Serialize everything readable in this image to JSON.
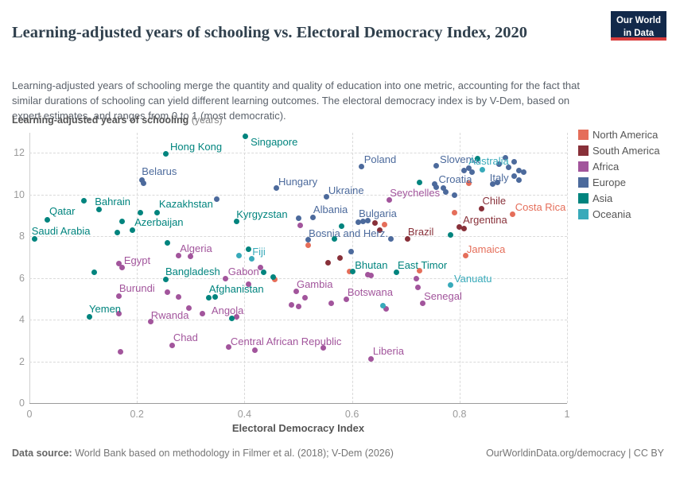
{
  "header": {
    "title": "Learning-adjusted years of schooling vs. Electoral Democracy Index, 2020",
    "subtitle": "Learning-adjusted years of schooling merge the quantity and quality of education into one metric, accounting for the fact that similar durations of schooling can yield different learning outcomes. The electoral democracy index is by V-Dem, based on expert estimates, and ranges from 0 to 1 (most democratic).",
    "logo_line1": "Our World",
    "logo_line2": "in Data",
    "logo_bg": "#12294a",
    "logo_stripe": "#d93c3c"
  },
  "footer": {
    "source_label": "Data source:",
    "source_text": " World Bank based on methodology in Filmer et al. (2018); V-Dem (2026)",
    "link_text": "OurWorldinData.org/democracy | CC BY"
  },
  "chart_data": {
    "type": "scatter",
    "title": "Learning-adjusted years of schooling vs. Electoral Democracy Index, 2020",
    "xlabel": "Electoral Democracy Index",
    "ylabel_bold": "Learning-adjusted years of schooling",
    "ylabel_unit": " (years)",
    "xlim": [
      0,
      1
    ],
    "ylim": [
      0,
      12.95
    ],
    "x_ticks": [
      0,
      0.2,
      0.4,
      0.6,
      0.8,
      1
    ],
    "x_tick_labels": [
      "0",
      "0.2",
      "0.4",
      "0.6",
      "0.8",
      "1"
    ],
    "y_ticks": [
      0,
      2,
      4,
      6,
      8,
      10,
      12
    ],
    "grid": "dashed",
    "legend_position": "right",
    "series": [
      {
        "name": "North America",
        "color": "#e56e5a",
        "points": [
          {
            "n": "Costa Rica",
            "x": 0.899,
            "y": 9.03,
            "lx": 3,
            "ly": -16
          },
          {
            "n": "Jamaica",
            "x": 0.812,
            "y": 7.05,
            "lx": 1,
            "ly": -15
          },
          {
            "x": 0.456,
            "y": 5.94
          },
          {
            "x": 0.595,
            "y": 6.29
          },
          {
            "x": 0.66,
            "y": 8.57
          },
          {
            "x": 0.725,
            "y": 6.36
          },
          {
            "x": 0.791,
            "y": 9.14
          },
          {
            "x": 0.817,
            "y": 10.55
          },
          {
            "x": 0.519,
            "y": 7.58
          }
        ]
      },
      {
        "name": "South America",
        "color": "#883039",
        "points": [
          {
            "n": "Chile",
            "x": 0.841,
            "y": 9.3,
            "lx": 1,
            "ly": -17
          },
          {
            "n": "Argentina",
            "x": 0.799,
            "y": 8.42,
            "lx": 5,
            "ly": -16
          },
          {
            "n": "Brazil",
            "x": 0.704,
            "y": 7.85,
            "lx": 0,
            "ly": -16
          },
          {
            "x": 0.578,
            "y": 6.97
          },
          {
            "x": 0.556,
            "y": 6.74
          },
          {
            "x": 0.643,
            "y": 8.61
          },
          {
            "x": 0.651,
            "y": 8.3
          },
          {
            "x": 0.808,
            "y": 8.38
          }
        ]
      },
      {
        "name": "Africa",
        "color": "#a2559c",
        "points": [
          {
            "n": "Algeria",
            "x": 0.277,
            "y": 7.05,
            "lx": 2,
            "ly": -16
          },
          {
            "n": "Egypt",
            "x": 0.167,
            "y": 6.7,
            "lx": 6,
            "ly": -10
          },
          {
            "n": "Burundi",
            "x": 0.167,
            "y": 5.14,
            "lx": 0,
            "ly": -16
          },
          {
            "n": "Rwanda",
            "x": 0.226,
            "y": 3.89,
            "lx": 0,
            "ly": -15
          },
          {
            "n": "Chad",
            "x": 0.266,
            "y": 2.78,
            "lx": 1,
            "ly": -16
          },
          {
            "n": "Gabon",
            "x": 0.365,
            "y": 5.98,
            "lx": 3,
            "ly": -15
          },
          {
            "n": "Angola",
            "x": 0.386,
            "y": 4.15,
            "lx": -32,
            "ly": -14
          },
          {
            "n": "Gambia",
            "x": 0.497,
            "y": 5.37,
            "lx": 0,
            "ly": -15
          },
          {
            "n": "Botswana",
            "x": 0.664,
            "y": 4.5,
            "lx": -49,
            "ly": -28
          },
          {
            "n": "Central African Republic",
            "x": 0.42,
            "y": 2.55,
            "lx": -31,
            "ly": -17
          },
          {
            "n": "Liberia",
            "x": 0.636,
            "y": 2.13,
            "lx": 2,
            "ly": -16
          },
          {
            "n": "Senegal",
            "x": 0.731,
            "y": 4.8,
            "lx": 2,
            "ly": -15
          },
          {
            "n": "Seychelles",
            "x": 0.669,
            "y": 9.75,
            "lx": 1,
            "ly": -15
          },
          {
            "x": 0.299,
            "y": 7.01
          },
          {
            "x": 0.173,
            "y": 6.51
          },
          {
            "x": 0.256,
            "y": 5.3
          },
          {
            "x": 0.278,
            "y": 5.1
          },
          {
            "x": 0.166,
            "y": 4.3
          },
          {
            "x": 0.169,
            "y": 2.44
          },
          {
            "x": 0.296,
            "y": 4.57
          },
          {
            "x": 0.322,
            "y": 4.3
          },
          {
            "x": 0.407,
            "y": 5.71
          },
          {
            "x": 0.43,
            "y": 6.48
          },
          {
            "x": 0.503,
            "y": 8.53
          },
          {
            "x": 0.63,
            "y": 6.17
          },
          {
            "x": 0.635,
            "y": 6.13
          },
          {
            "x": 0.719,
            "y": 5.98
          },
          {
            "x": 0.723,
            "y": 5.56
          },
          {
            "x": 0.513,
            "y": 5.03
          },
          {
            "x": 0.487,
            "y": 4.72
          },
          {
            "x": 0.561,
            "y": 4.8
          },
          {
            "x": 0.59,
            "y": 4.99
          },
          {
            "x": 0.546,
            "y": 2.63
          },
          {
            "x": 0.371,
            "y": 2.67
          },
          {
            "x": 0.5,
            "y": 4.61
          }
        ]
      },
      {
        "name": "Europe",
        "color": "#4c6a9c",
        "points": [
          {
            "n": "Belarus",
            "x": 0.209,
            "y": 10.7,
            "lx": 0,
            "ly": -17
          },
          {
            "n": "Hungary",
            "x": 0.46,
            "y": 10.29,
            "lx": 2,
            "ly": -15
          },
          {
            "n": "Ukraine",
            "x": 0.553,
            "y": 9.87,
            "lx": 2,
            "ly": -15
          },
          {
            "n": "Albania",
            "x": 0.528,
            "y": 8.91,
            "lx": 0,
            "ly": -16
          },
          {
            "n": "Bulgaria",
            "x": 0.62,
            "y": 8.72,
            "lx": -5,
            "ly": -16
          },
          {
            "n": "Bosnia and Herz.",
            "x": 0.518,
            "y": 7.81,
            "lx": 1,
            "ly": -15
          },
          {
            "n": "Poland",
            "x": 0.618,
            "y": 11.35,
            "lx": 3,
            "ly": -15
          },
          {
            "n": "Slovenia",
            "x": 0.756,
            "y": 11.39,
            "lx": 5,
            "ly": -14
          },
          {
            "n": "Croatia",
            "x": 0.77,
            "y": 10.3,
            "lx": -6,
            "ly": -18
          },
          {
            "n": "Italy",
            "x": 0.871,
            "y": 10.59,
            "lx": -10,
            "ly": -12
          },
          {
            "x": 0.348,
            "y": 9.79
          },
          {
            "x": 0.501,
            "y": 8.84
          },
          {
            "x": 0.599,
            "y": 7.24
          },
          {
            "x": 0.611,
            "y": 8.68
          },
          {
            "x": 0.629,
            "y": 8.76
          },
          {
            "x": 0.673,
            "y": 7.85
          },
          {
            "x": 0.756,
            "y": 10.36
          },
          {
            "x": 0.808,
            "y": 11.16
          },
          {
            "x": 0.817,
            "y": 11.24
          },
          {
            "x": 0.823,
            "y": 11.05
          },
          {
            "x": 0.754,
            "y": 10.48
          },
          {
            "x": 0.775,
            "y": 10.13
          },
          {
            "x": 0.791,
            "y": 9.98
          },
          {
            "x": 0.885,
            "y": 11.77
          },
          {
            "x": 0.901,
            "y": 11.58
          },
          {
            "x": 0.873,
            "y": 11.43
          },
          {
            "x": 0.892,
            "y": 11.28
          },
          {
            "x": 0.91,
            "y": 11.16
          },
          {
            "x": 0.92,
            "y": 11.08
          },
          {
            "x": 0.901,
            "y": 10.86
          },
          {
            "x": 0.911,
            "y": 10.67
          },
          {
            "x": 0.862,
            "y": 10.48
          },
          {
            "x": 0.213,
            "y": 10.52
          }
        ]
      },
      {
        "name": "Asia",
        "color": "#00847e",
        "points": [
          {
            "n": "Saudi Arabia",
            "x": 0.01,
            "y": 7.85,
            "lx": -4,
            "ly": -17
          },
          {
            "n": "Qatar",
            "x": 0.034,
            "y": 8.8,
            "lx": 2,
            "ly": -17
          },
          {
            "n": "Bahrain",
            "x": 0.129,
            "y": 9.26,
            "lx": -5,
            "ly": -17
          },
          {
            "n": "Hong Kong",
            "x": 0.253,
            "y": 11.95,
            "lx": 6,
            "ly": -15
          },
          {
            "n": "Kazakhstan",
            "x": 0.238,
            "y": 9.14,
            "lx": 2,
            "ly": -17
          },
          {
            "n": "Azerbaijan",
            "x": 0.191,
            "y": 8.3,
            "lx": 3,
            "ly": -16
          },
          {
            "n": "Bangladesh",
            "x": 0.253,
            "y": 5.94,
            "lx": 0,
            "ly": -16
          },
          {
            "n": "Yemen",
            "x": 0.111,
            "y": 4.15,
            "lx": 0,
            "ly": -16
          },
          {
            "n": "Singapore",
            "x": 0.401,
            "y": 12.8,
            "lx": 7,
            "ly": 1
          },
          {
            "n": "Kyrgyzstan",
            "x": 0.385,
            "y": 8.72,
            "lx": 0,
            "ly": -15
          },
          {
            "n": "Afghanistan",
            "x": 0.346,
            "y": 5.1,
            "lx": -8,
            "ly": -16
          },
          {
            "n": "Bhutan",
            "x": 0.601,
            "y": 6.29,
            "lx": 3,
            "ly": -15
          },
          {
            "n": "East Timor",
            "x": 0.682,
            "y": 6.25,
            "lx": 2,
            "ly": -16
          },
          {
            "x": 0.101,
            "y": 9.68
          },
          {
            "x": 0.206,
            "y": 9.14
          },
          {
            "x": 0.172,
            "y": 8.72
          },
          {
            "x": 0.163,
            "y": 8.19
          },
          {
            "x": 0.257,
            "y": 7.66
          },
          {
            "x": 0.121,
            "y": 6.25
          },
          {
            "x": 0.333,
            "y": 5.03
          },
          {
            "x": 0.376,
            "y": 4.04
          },
          {
            "x": 0.408,
            "y": 7.39
          },
          {
            "x": 0.436,
            "y": 6.25
          },
          {
            "x": 0.454,
            "y": 6.02
          },
          {
            "x": 0.58,
            "y": 8.49
          },
          {
            "x": 0.567,
            "y": 7.85
          },
          {
            "x": 0.725,
            "y": 10.59
          },
          {
            "x": 0.784,
            "y": 8.04
          },
          {
            "x": 0.833,
            "y": 11.73
          }
        ]
      },
      {
        "name": "Oceania",
        "color": "#38aaba",
        "points": [
          {
            "n": "Fiji",
            "x": 0.413,
            "y": 6.93,
            "lx": 1,
            "ly": -15
          },
          {
            "n": "Australia",
            "x": 0.842,
            "y": 11.2,
            "lx": -17,
            "ly": -17
          },
          {
            "n": "Vanuatu",
            "x": 0.784,
            "y": 5.64,
            "lx": 4,
            "ly": -15
          },
          {
            "x": 0.39,
            "y": 7.05
          },
          {
            "x": 0.657,
            "y": 4.65
          }
        ]
      }
    ]
  }
}
